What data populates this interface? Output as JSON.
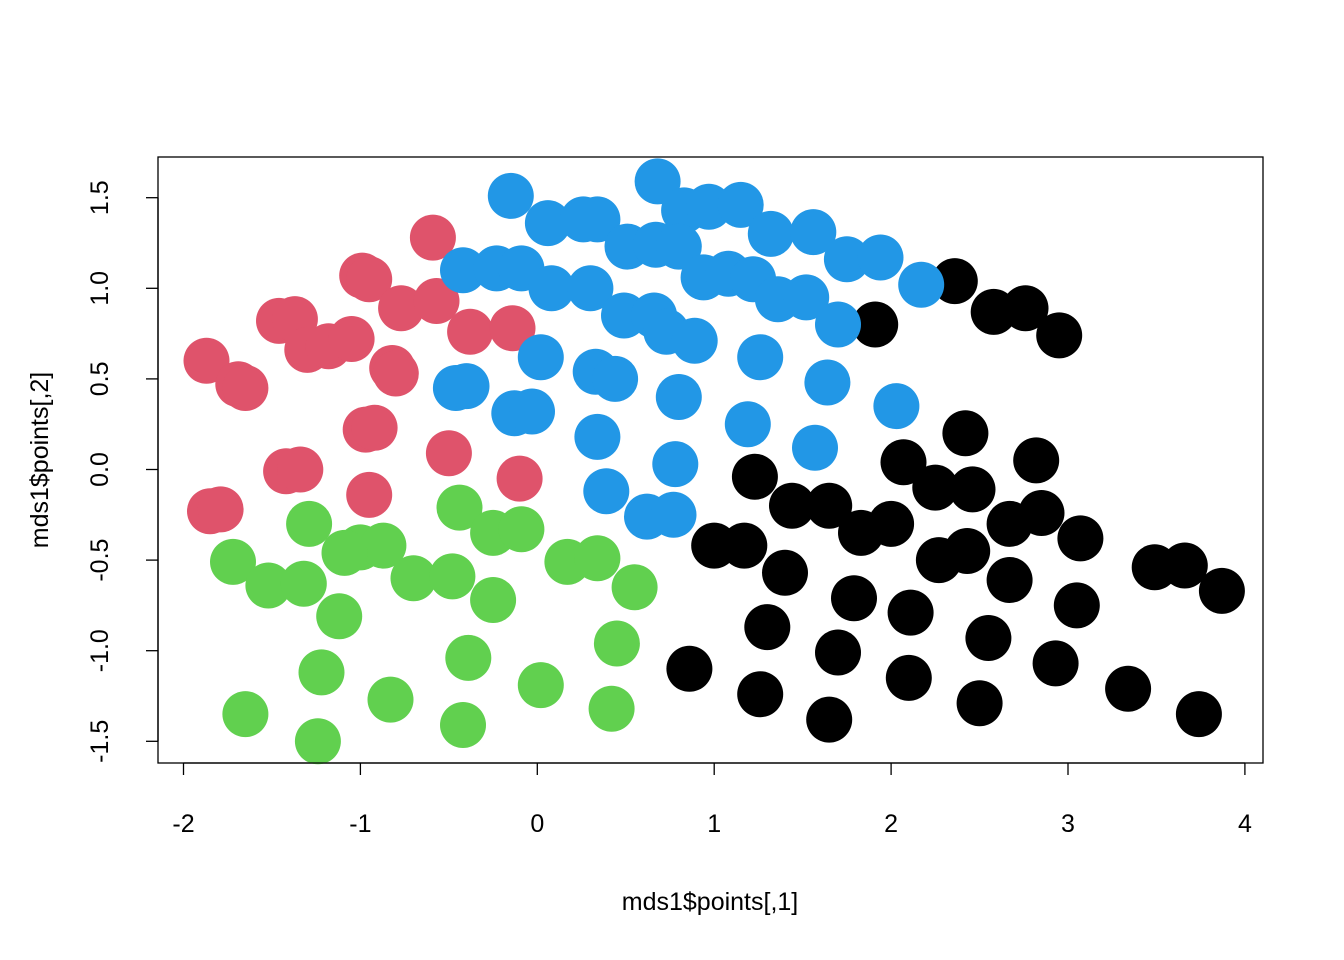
{
  "chart_data": {
    "type": "scatter",
    "title": "",
    "xlabel": "mds1$points[,1]",
    "ylabel": "mds1$points[,2]",
    "xlim": [
      -2.15,
      4.1
    ],
    "ylim": [
      -1.6,
      1.73
    ],
    "xticks": [
      -2,
      -1,
      0,
      1,
      2,
      3,
      4
    ],
    "yticks": [
      -1.5,
      -1.0,
      -0.5,
      0.0,
      0.5,
      1.0,
      1.5
    ],
    "xtick_labels": [
      "-2",
      "-1",
      "0",
      "1",
      "2",
      "3",
      "4"
    ],
    "ytick_labels": [
      "-1.5",
      "-1.0",
      "-0.5",
      "0.0",
      "0.5",
      "1.0",
      "1.5"
    ],
    "grid": false,
    "legend": "none",
    "series": [
      {
        "color": "#000000",
        "points": [
          [
            2.36,
            1.04
          ],
          [
            2.58,
            0.87
          ],
          [
            2.76,
            0.89
          ],
          [
            2.95,
            0.74
          ],
          [
            1.91,
            0.8
          ],
          [
            2.42,
            0.2
          ],
          [
            2.07,
            0.04
          ],
          [
            2.82,
            0.05
          ],
          [
            1.23,
            -0.04
          ],
          [
            2.25,
            -0.1
          ],
          [
            2.46,
            -0.11
          ],
          [
            1.44,
            -0.2
          ],
          [
            1.65,
            -0.2
          ],
          [
            2.0,
            -0.3
          ],
          [
            2.27,
            -0.5
          ],
          [
            2.43,
            -0.45
          ],
          [
            2.67,
            -0.3
          ],
          [
            2.85,
            -0.24
          ],
          [
            3.07,
            -0.38
          ],
          [
            1.83,
            -0.35
          ],
          [
            1.0,
            -0.42
          ],
          [
            1.17,
            -0.42
          ],
          [
            1.4,
            -0.57
          ],
          [
            2.67,
            -0.61
          ],
          [
            3.49,
            -0.54
          ],
          [
            3.66,
            -0.53
          ],
          [
            3.87,
            -0.67
          ],
          [
            1.79,
            -0.71
          ],
          [
            2.11,
            -0.79
          ],
          [
            3.05,
            -0.75
          ],
          [
            1.3,
            -0.87
          ],
          [
            2.55,
            -0.93
          ],
          [
            0.86,
            -1.1
          ],
          [
            1.7,
            -1.01
          ],
          [
            2.1,
            -1.15
          ],
          [
            2.93,
            -1.07
          ],
          [
            1.26,
            -1.24
          ],
          [
            2.5,
            -1.29
          ],
          [
            3.34,
            -1.21
          ],
          [
            1.65,
            -1.38
          ],
          [
            3.74,
            -1.35
          ]
        ]
      },
      {
        "color": "#DF536B",
        "points": [
          [
            -0.59,
            1.28
          ],
          [
            -0.99,
            1.07
          ],
          [
            -0.95,
            1.05
          ],
          [
            -0.77,
            0.89
          ],
          [
            -0.57,
            0.93
          ],
          [
            -1.46,
            0.82
          ],
          [
            -1.37,
            0.83
          ],
          [
            -1.3,
            0.66
          ],
          [
            -1.18,
            0.68
          ],
          [
            -1.05,
            0.72
          ],
          [
            -0.38,
            0.76
          ],
          [
            -0.14,
            0.78
          ],
          [
            -0.82,
            0.56
          ],
          [
            -0.8,
            0.53
          ],
          [
            -1.87,
            0.6
          ],
          [
            -1.69,
            0.47
          ],
          [
            -1.65,
            0.45
          ],
          [
            -0.97,
            0.22
          ],
          [
            -0.92,
            0.23
          ],
          [
            -0.5,
            0.09
          ],
          [
            -1.42,
            -0.01
          ],
          [
            -1.34,
            0.0
          ],
          [
            -0.1,
            -0.05
          ],
          [
            -0.95,
            -0.14
          ],
          [
            -1.85,
            -0.23
          ],
          [
            -1.79,
            -0.22
          ]
        ]
      },
      {
        "color": "#2297E6",
        "points": [
          [
            -0.15,
            1.51
          ],
          [
            0.06,
            1.36
          ],
          [
            0.26,
            1.38
          ],
          [
            0.34,
            1.38
          ],
          [
            0.68,
            1.59
          ],
          [
            0.83,
            1.43
          ],
          [
            0.97,
            1.45
          ],
          [
            1.15,
            1.46
          ],
          [
            1.32,
            1.3
          ],
          [
            1.56,
            1.31
          ],
          [
            0.51,
            1.23
          ],
          [
            0.67,
            1.24
          ],
          [
            0.8,
            1.23
          ],
          [
            1.75,
            1.16
          ],
          [
            1.94,
            1.17
          ],
          [
            -0.42,
            1.1
          ],
          [
            -0.23,
            1.11
          ],
          [
            -0.09,
            1.11
          ],
          [
            0.08,
            1.0
          ],
          [
            0.3,
            1.0
          ],
          [
            0.94,
            1.06
          ],
          [
            1.08,
            1.08
          ],
          [
            1.22,
            1.05
          ],
          [
            2.17,
            1.02
          ],
          [
            1.36,
            0.94
          ],
          [
            1.52,
            0.95
          ],
          [
            1.7,
            0.8
          ],
          [
            0.49,
            0.85
          ],
          [
            0.66,
            0.85
          ],
          [
            0.73,
            0.76
          ],
          [
            0.89,
            0.71
          ],
          [
            0.02,
            0.62
          ],
          [
            0.33,
            0.54
          ],
          [
            0.44,
            0.5
          ],
          [
            1.26,
            0.62
          ],
          [
            1.64,
            0.48
          ],
          [
            -0.46,
            0.45
          ],
          [
            -0.4,
            0.46
          ],
          [
            -0.13,
            0.31
          ],
          [
            -0.03,
            0.32
          ],
          [
            0.8,
            0.4
          ],
          [
            2.03,
            0.35
          ],
          [
            1.19,
            0.25
          ],
          [
            0.34,
            0.18
          ],
          [
            1.57,
            0.12
          ],
          [
            0.78,
            0.03
          ],
          [
            0.39,
            -0.12
          ],
          [
            0.62,
            -0.26
          ],
          [
            0.77,
            -0.25
          ]
        ]
      },
      {
        "color": "#61D04F",
        "points": [
          [
            -0.44,
            -0.21
          ],
          [
            -1.29,
            -0.3
          ],
          [
            -0.25,
            -0.35
          ],
          [
            -0.09,
            -0.33
          ],
          [
            -1.0,
            -0.43
          ],
          [
            -0.87,
            -0.42
          ],
          [
            -1.09,
            -0.46
          ],
          [
            0.17,
            -0.51
          ],
          [
            0.34,
            -0.49
          ],
          [
            -1.72,
            -0.51
          ],
          [
            -1.52,
            -0.64
          ],
          [
            -1.32,
            -0.63
          ],
          [
            -0.7,
            -0.6
          ],
          [
            -0.48,
            -0.59
          ],
          [
            0.55,
            -0.65
          ],
          [
            -0.25,
            -0.72
          ],
          [
            -1.12,
            -0.81
          ],
          [
            0.45,
            -0.96
          ],
          [
            -0.39,
            -1.04
          ],
          [
            -1.22,
            -1.12
          ],
          [
            0.02,
            -1.19
          ],
          [
            -0.83,
            -1.27
          ],
          [
            -1.65,
            -1.35
          ],
          [
            0.42,
            -1.32
          ],
          [
            -0.42,
            -1.41
          ],
          [
            -1.24,
            -1.5
          ]
        ]
      }
    ]
  }
}
